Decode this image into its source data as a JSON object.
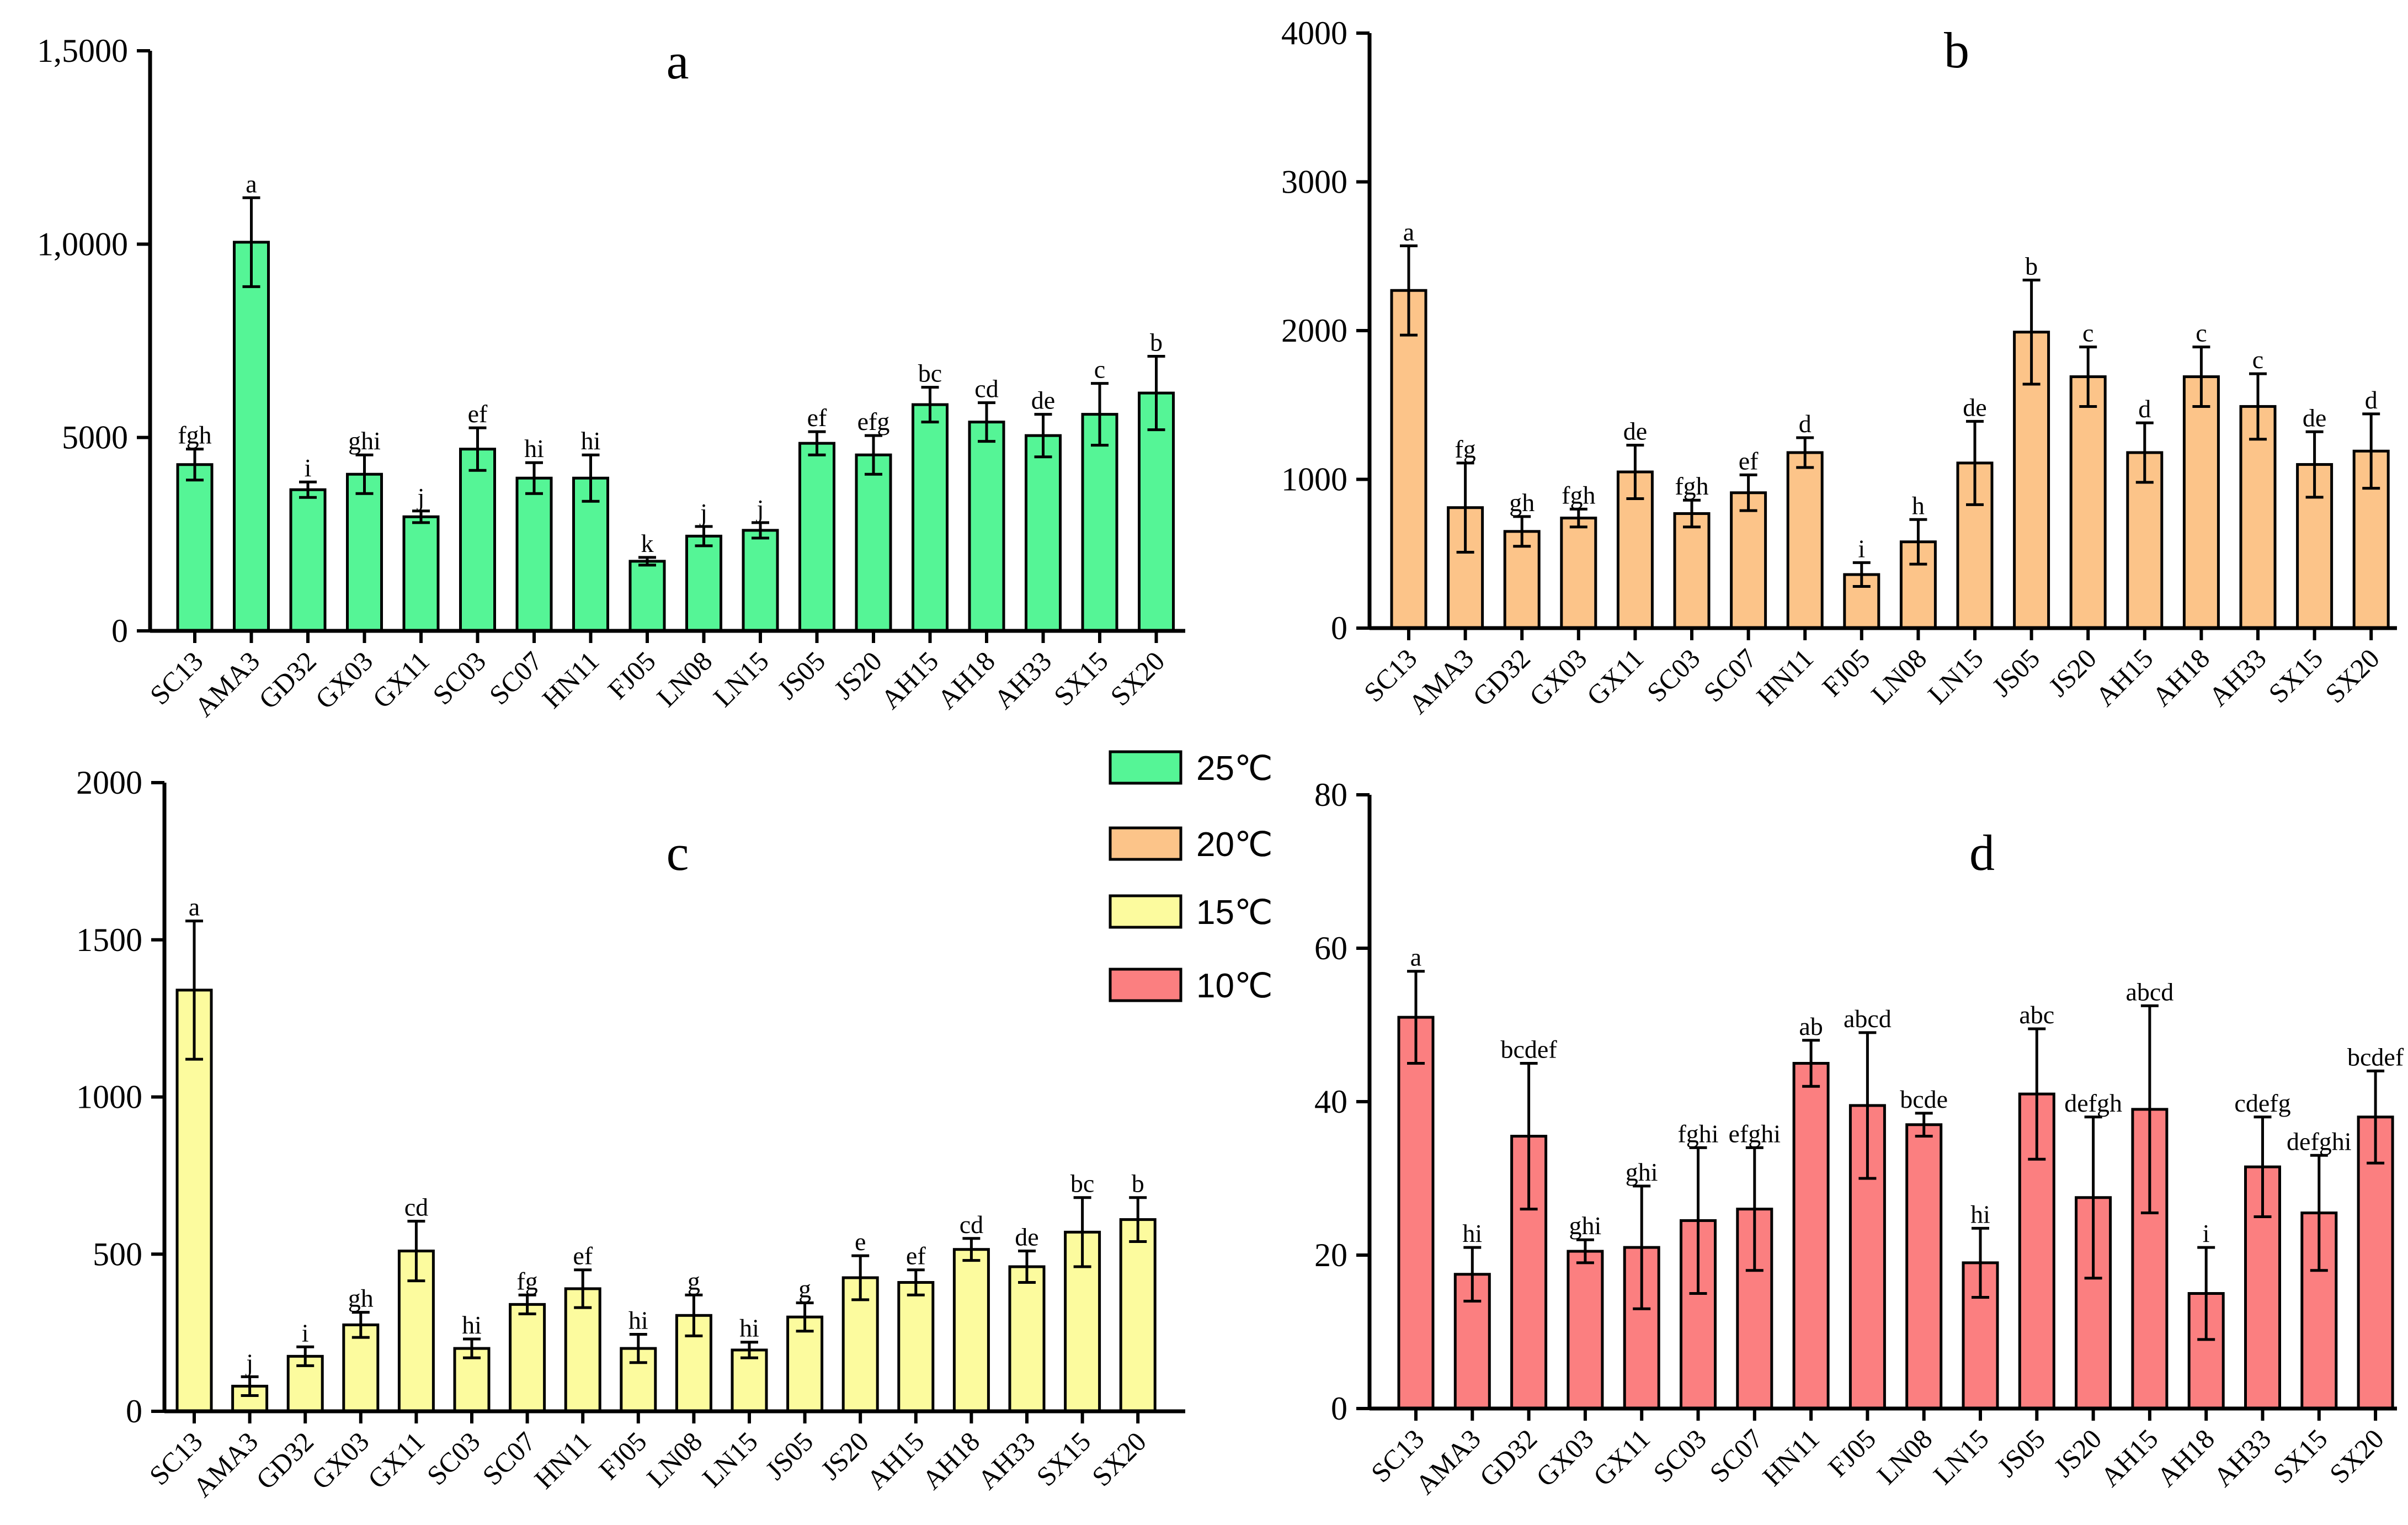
{
  "categories": [
    "SC13",
    "AMA3",
    "GD32",
    "GX03",
    "GX11",
    "SC03",
    "SC07",
    "HN11",
    "FJ05",
    "LN08",
    "LN15",
    "JS05",
    "JS20",
    "AH15",
    "AH18",
    "AH33",
    "SX15",
    "SX20"
  ],
  "legend": [
    {
      "label": "25℃",
      "color": "#55F596"
    },
    {
      "label": "20℃",
      "color": "#FCC489"
    },
    {
      "label": "15℃",
      "color": "#FCFB9E"
    },
    {
      "label": "10℃",
      "color": "#FB7F80"
    }
  ],
  "chart_data": [
    {
      "type": "bar",
      "title": "a",
      "series_name": "25℃",
      "color": "#55F596",
      "categories": [
        "SC13",
        "AMA3",
        "GD32",
        "GX03",
        "GX11",
        "SC03",
        "SC07",
        "HN11",
        "FJ05",
        "LN08",
        "LN15",
        "JS05",
        "JS20",
        "AH15",
        "AH18",
        "AH33",
        "SX15",
        "SX20"
      ],
      "values": [
        4300,
        10050,
        3650,
        4050,
        2950,
        4700,
        3950,
        3950,
        1800,
        2450,
        2600,
        4850,
        4550,
        5850,
        5400,
        5050,
        5600,
        6150
      ],
      "errors": [
        400,
        1150,
        200,
        500,
        150,
        550,
        400,
        600,
        100,
        250,
        200,
        300,
        500,
        450,
        500,
        550,
        800,
        950
      ],
      "labels": [
        "fgh",
        "a",
        "i",
        "ghi",
        "j",
        "ef",
        "hi",
        "hi",
        "k",
        "j",
        "j",
        "ef",
        "efg",
        "bc",
        "cd",
        "de",
        "c",
        "b"
      ],
      "yticks": [
        "0",
        "5000",
        "1,0000",
        "1,5000"
      ],
      "ylim": [
        0,
        15000
      ],
      "xlabel": "",
      "ylabel": ""
    },
    {
      "type": "bar",
      "title": "b",
      "series_name": "20℃",
      "color": "#FCC489",
      "categories": [
        "SC13",
        "AMA3",
        "GD32",
        "GX03",
        "GX11",
        "SC03",
        "SC07",
        "HN11",
        "FJ05",
        "LN08",
        "LN15",
        "JS05",
        "JS20",
        "AH15",
        "AH18",
        "AH33",
        "SX15",
        "SX20"
      ],
      "values": [
        2270,
        810,
        650,
        740,
        1050,
        770,
        910,
        1180,
        360,
        580,
        1110,
        1990,
        1690,
        1180,
        1690,
        1490,
        1100,
        1190
      ],
      "errors": [
        300,
        300,
        100,
        60,
        180,
        90,
        120,
        100,
        80,
        150,
        280,
        350,
        200,
        200,
        200,
        220,
        220,
        250
      ],
      "labels": [
        "a",
        "fg",
        "gh",
        "fgh",
        "de",
        "fgh",
        "ef",
        "d",
        "i",
        "h",
        "de",
        "b",
        "c",
        "d",
        "c",
        "c",
        "de",
        "d"
      ],
      "yticks": [
        "0",
        "1000",
        "2000",
        "3000",
        "4000"
      ],
      "ylim": [
        0,
        4000
      ],
      "xlabel": "",
      "ylabel": ""
    },
    {
      "type": "bar",
      "title": "c",
      "series_name": "15℃",
      "color": "#FCFB9E",
      "categories": [
        "SC13",
        "AMA3",
        "GD32",
        "GX03",
        "GX11",
        "SC03",
        "SC07",
        "HN11",
        "FJ05",
        "LN08",
        "LN15",
        "JS05",
        "JS20",
        "AH15",
        "AH18",
        "AH33",
        "SX15",
        "SX20"
      ],
      "values": [
        1340,
        80,
        175,
        275,
        510,
        200,
        340,
        390,
        200,
        305,
        195,
        300,
        425,
        410,
        515,
        460,
        570,
        610
      ],
      "errors": [
        220,
        30,
        30,
        40,
        95,
        30,
        30,
        60,
        45,
        65,
        25,
        45,
        70,
        40,
        35,
        50,
        110,
        70
      ],
      "labels": [
        "a",
        "j",
        "i",
        "gh",
        "cd",
        "hi",
        "fg",
        "ef",
        "hi",
        "g",
        "hi",
        "g",
        "e",
        "ef",
        "cd",
        "de",
        "bc",
        "b"
      ],
      "yticks": [
        "0",
        "500",
        "1000",
        "1500",
        "2000"
      ],
      "ylim": [
        0,
        2000
      ],
      "xlabel": "",
      "ylabel": ""
    },
    {
      "type": "bar",
      "title": "d",
      "series_name": "10℃",
      "color": "#FB7F80",
      "categories": [
        "SC13",
        "AMA3",
        "GD32",
        "GX03",
        "GX11",
        "SC03",
        "SC07",
        "HN11",
        "FJ05",
        "LN08",
        "LN15",
        "JS05",
        "JS20",
        "AH15",
        "AH18",
        "AH33",
        "SX15",
        "SX20"
      ],
      "values": [
        51,
        17.5,
        35.5,
        20.5,
        21,
        24.5,
        26,
        45,
        39.5,
        37,
        19,
        41,
        27.5,
        39,
        15,
        31.5,
        25.5,
        38
      ],
      "errors": [
        6,
        3.5,
        9.5,
        1.5,
        8,
        9.5,
        8,
        3,
        9.5,
        1.5,
        4.5,
        8.5,
        10.5,
        13.5,
        6,
        6.5,
        7.5,
        6
      ],
      "labels": [
        "a",
        "hi",
        "bcdef",
        "ghi",
        "ghi",
        "fghi",
        "efghi",
        "ab",
        "abcd",
        "bcde",
        "hi",
        "abc",
        "defgh",
        "abcd",
        "i",
        "cdefg",
        "defghi",
        "bcdef"
      ],
      "yticks": [
        "0",
        "20",
        "40",
        "60",
        "80"
      ],
      "ylim": [
        0,
        80
      ],
      "xlabel": "",
      "ylabel": ""
    }
  ]
}
